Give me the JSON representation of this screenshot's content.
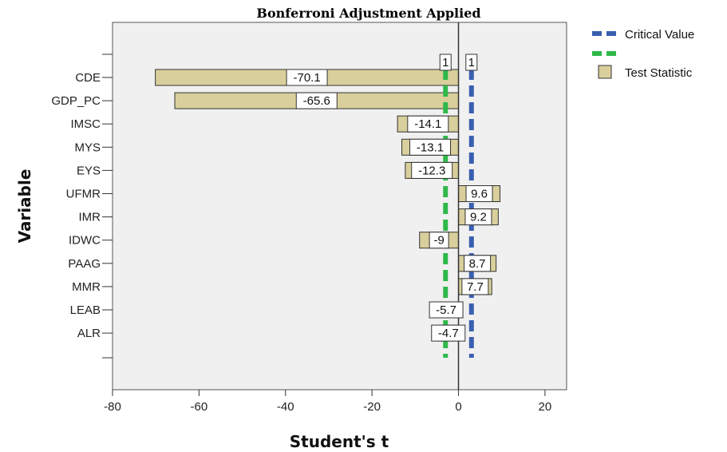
{
  "chart_data": {
    "type": "bar",
    "orientation": "horizontal",
    "title": "Bonferroni Adjustment Applied",
    "xlabel": "Student's t",
    "ylabel": "Variable",
    "xlim": [
      -80,
      25
    ],
    "xticks": [
      -80,
      -60,
      -40,
      -20,
      0,
      20
    ],
    "categories": [
      "CDE",
      "GDP_PC",
      "IMSC",
      "MYS",
      "EYS",
      "UFMR",
      "IMR",
      "IDWC",
      "PAAG",
      "MMR",
      "LEAB",
      "ALR"
    ],
    "series": [
      {
        "name": "Test Statistic",
        "values": [
          -70.1,
          -65.6,
          -14.1,
          -13.1,
          -12.3,
          9.6,
          9.2,
          -9,
          8.7,
          7.7,
          -5.7,
          -4.7
        ],
        "labels": [
          "-70.1",
          "-65.6",
          "-14.1",
          "-13.1",
          "-12.3",
          "9.6",
          "9.2",
          "-9",
          "8.7",
          "7.7",
          "-5.7",
          "-4.7"
        ],
        "color": "#d8cf9c"
      },
      {
        "name": "Critical Value",
        "lines": [
          {
            "value": -3.0,
            "color": "#2fb84a"
          },
          {
            "value": 3.0,
            "color": "#3a5fb0"
          }
        ],
        "label": "1"
      }
    ],
    "zero_line": 0,
    "grid": false,
    "legend": "top-right",
    "plot_background": "#f0f0f0"
  }
}
